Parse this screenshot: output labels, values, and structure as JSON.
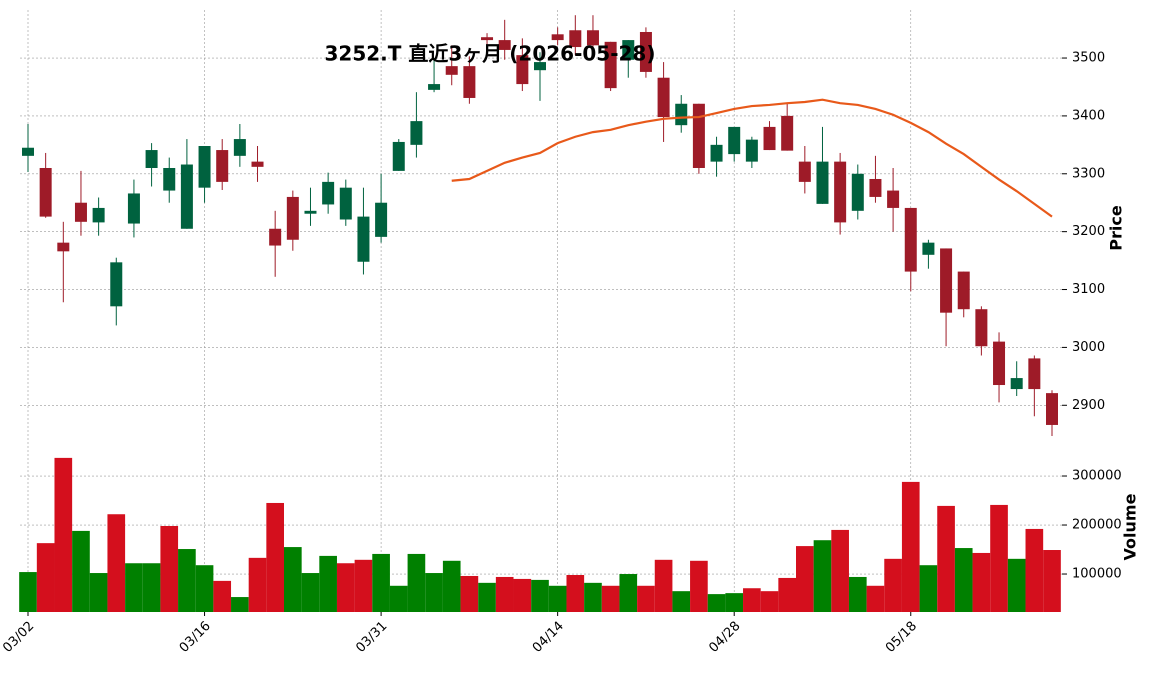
{
  "chart_data": {
    "type": "candlestick",
    "title": "3252.T 直近3ヶ月 (2026-05-28)",
    "y_label": "Price",
    "y2_label": "Volume",
    "categories": [
      "03/02",
      null,
      null,
      null,
      null,
      null,
      null,
      null,
      null,
      null,
      "03/16",
      null,
      null,
      null,
      null,
      null,
      null,
      null,
      null,
      null,
      "03/31",
      null,
      null,
      null,
      null,
      null,
      null,
      null,
      null,
      null,
      "04/14",
      null,
      null,
      null,
      null,
      null,
      null,
      null,
      null,
      null,
      "04/28",
      null,
      null,
      null,
      null,
      null,
      null,
      null,
      null,
      null,
      "05/18",
      null,
      null,
      null,
      null,
      null,
      null,
      null,
      null
    ],
    "open": [
      3331,
      3310,
      3181,
      3250,
      3216,
      3071,
      3214,
      3310,
      3271,
      3205,
      3276,
      3341,
      3331,
      3321,
      3205,
      3260,
      3231,
      3247,
      3221,
      3148,
      3191,
      3305,
      3350,
      3445,
      3486,
      3486,
      3536,
      3531,
      3505,
      3479,
      3541,
      3548,
      3548,
      3528,
      3497,
      3545,
      3466,
      3384,
      3421,
      3321,
      3334,
      3321,
      3381,
      3400,
      3321,
      3248,
      3321,
      3236,
      3291,
      3271,
      3241,
      3160,
      3171,
      3131,
      3066,
      3010,
      2928,
      2981,
      2921
    ],
    "high": [
      3386,
      3336,
      3217,
      3305,
      3259,
      3155,
      3290,
      3353,
      3328,
      3360,
      3348,
      3360,
      3386,
      3348,
      3236,
      3271,
      3276,
      3302,
      3290,
      3276,
      3300,
      3360,
      3441,
      3500,
      3522,
      3503,
      3543,
      3566,
      3534,
      3510,
      3553,
      3574,
      3574,
      3528,
      3531,
      3553,
      3493,
      3436,
      3421,
      3364,
      3381,
      3364,
      3391,
      3421,
      3348,
      3381,
      3336,
      3316,
      3331,
      3310,
      3241,
      3186,
      3171,
      3131,
      3071,
      3026,
      2976,
      2986,
      2926
    ],
    "low": [
      3303,
      3224,
      3078,
      3193,
      3193,
      3038,
      3190,
      3278,
      3250,
      3205,
      3250,
      3272,
      3312,
      3286,
      3122,
      3167,
      3210,
      3231,
      3210,
      3126,
      3181,
      3305,
      3328,
      3441,
      3453,
      3421,
      3522,
      3497,
      3443,
      3426,
      3522,
      3505,
      3517,
      3443,
      3466,
      3466,
      3355,
      3371,
      3300,
      3295,
      3321,
      3310,
      3341,
      3340,
      3266,
      3248,
      3195,
      3221,
      3250,
      3200,
      3097,
      3136,
      3002,
      3052,
      2986,
      2905,
      2916,
      2881,
      2847
    ],
    "close": [
      3345,
      3226,
      3166,
      3217,
      3241,
      3147,
      3266,
      3341,
      3310,
      3316,
      3348,
      3286,
      3360,
      3312,
      3176,
      3186,
      3236,
      3286,
      3276,
      3226,
      3250,
      3355,
      3391,
      3455,
      3471,
      3431,
      3531,
      3514,
      3455,
      3493,
      3531,
      3519,
      3522,
      3448,
      3531,
      3476,
      3398,
      3421,
      3310,
      3350,
      3381,
      3359,
      3341,
      3340,
      3286,
      3321,
      3216,
      3300,
      3260,
      3241,
      3131,
      3181,
      3060,
      3066,
      3002,
      2935,
      2947,
      2928,
      2866
    ],
    "ma": [
      null,
      null,
      null,
      null,
      null,
      null,
      null,
      null,
      null,
      null,
      null,
      null,
      null,
      null,
      null,
      null,
      null,
      null,
      null,
      null,
      null,
      null,
      null,
      null,
      3288,
      3291,
      3305,
      3319,
      3328,
      3336,
      3353,
      3364,
      3372,
      3376,
      3384,
      3390,
      3395,
      3397,
      3398,
      3405,
      3412,
      3417,
      3419,
      3422,
      3424,
      3428,
      3422,
      3419,
      3412,
      3402,
      3388,
      3372,
      3352,
      3334,
      3312,
      3290,
      3270,
      3248,
      3226
    ],
    "volume": [
      104000,
      163000,
      337000,
      188000,
      102000,
      222000,
      122000,
      122000,
      198000,
      151000,
      118000,
      86000,
      53000,
      133000,
      245000,
      155000,
      102000,
      137000,
      122000,
      129000,
      141000,
      76000,
      141000,
      102000,
      127000,
      96000,
      82000,
      94000,
      90000,
      88000,
      76000,
      98000,
      82000,
      76000,
      100000,
      76000,
      129000,
      65000,
      127000,
      59000,
      61000,
      71000,
      65000,
      92000,
      157000,
      169000,
      190000,
      94000,
      76000,
      131000,
      288000,
      118000,
      239000,
      153000,
      143000,
      241000,
      131000,
      192000,
      149000
    ],
    "up_color": "#00623f",
    "down_color": "#9e1b28",
    "volume_up_color": "#008000",
    "volume_down_color": "#d40f1d",
    "ma_color": "#e8591a",
    "ylim": [
      2840,
      3583
    ],
    "yticks": [
      2900,
      3000,
      3100,
      3200,
      3300,
      3400,
      3500
    ],
    "y2lim": [
      22500,
      373500
    ],
    "y2ticks": [
      100000,
      200000,
      300000
    ],
    "grid": true
  }
}
